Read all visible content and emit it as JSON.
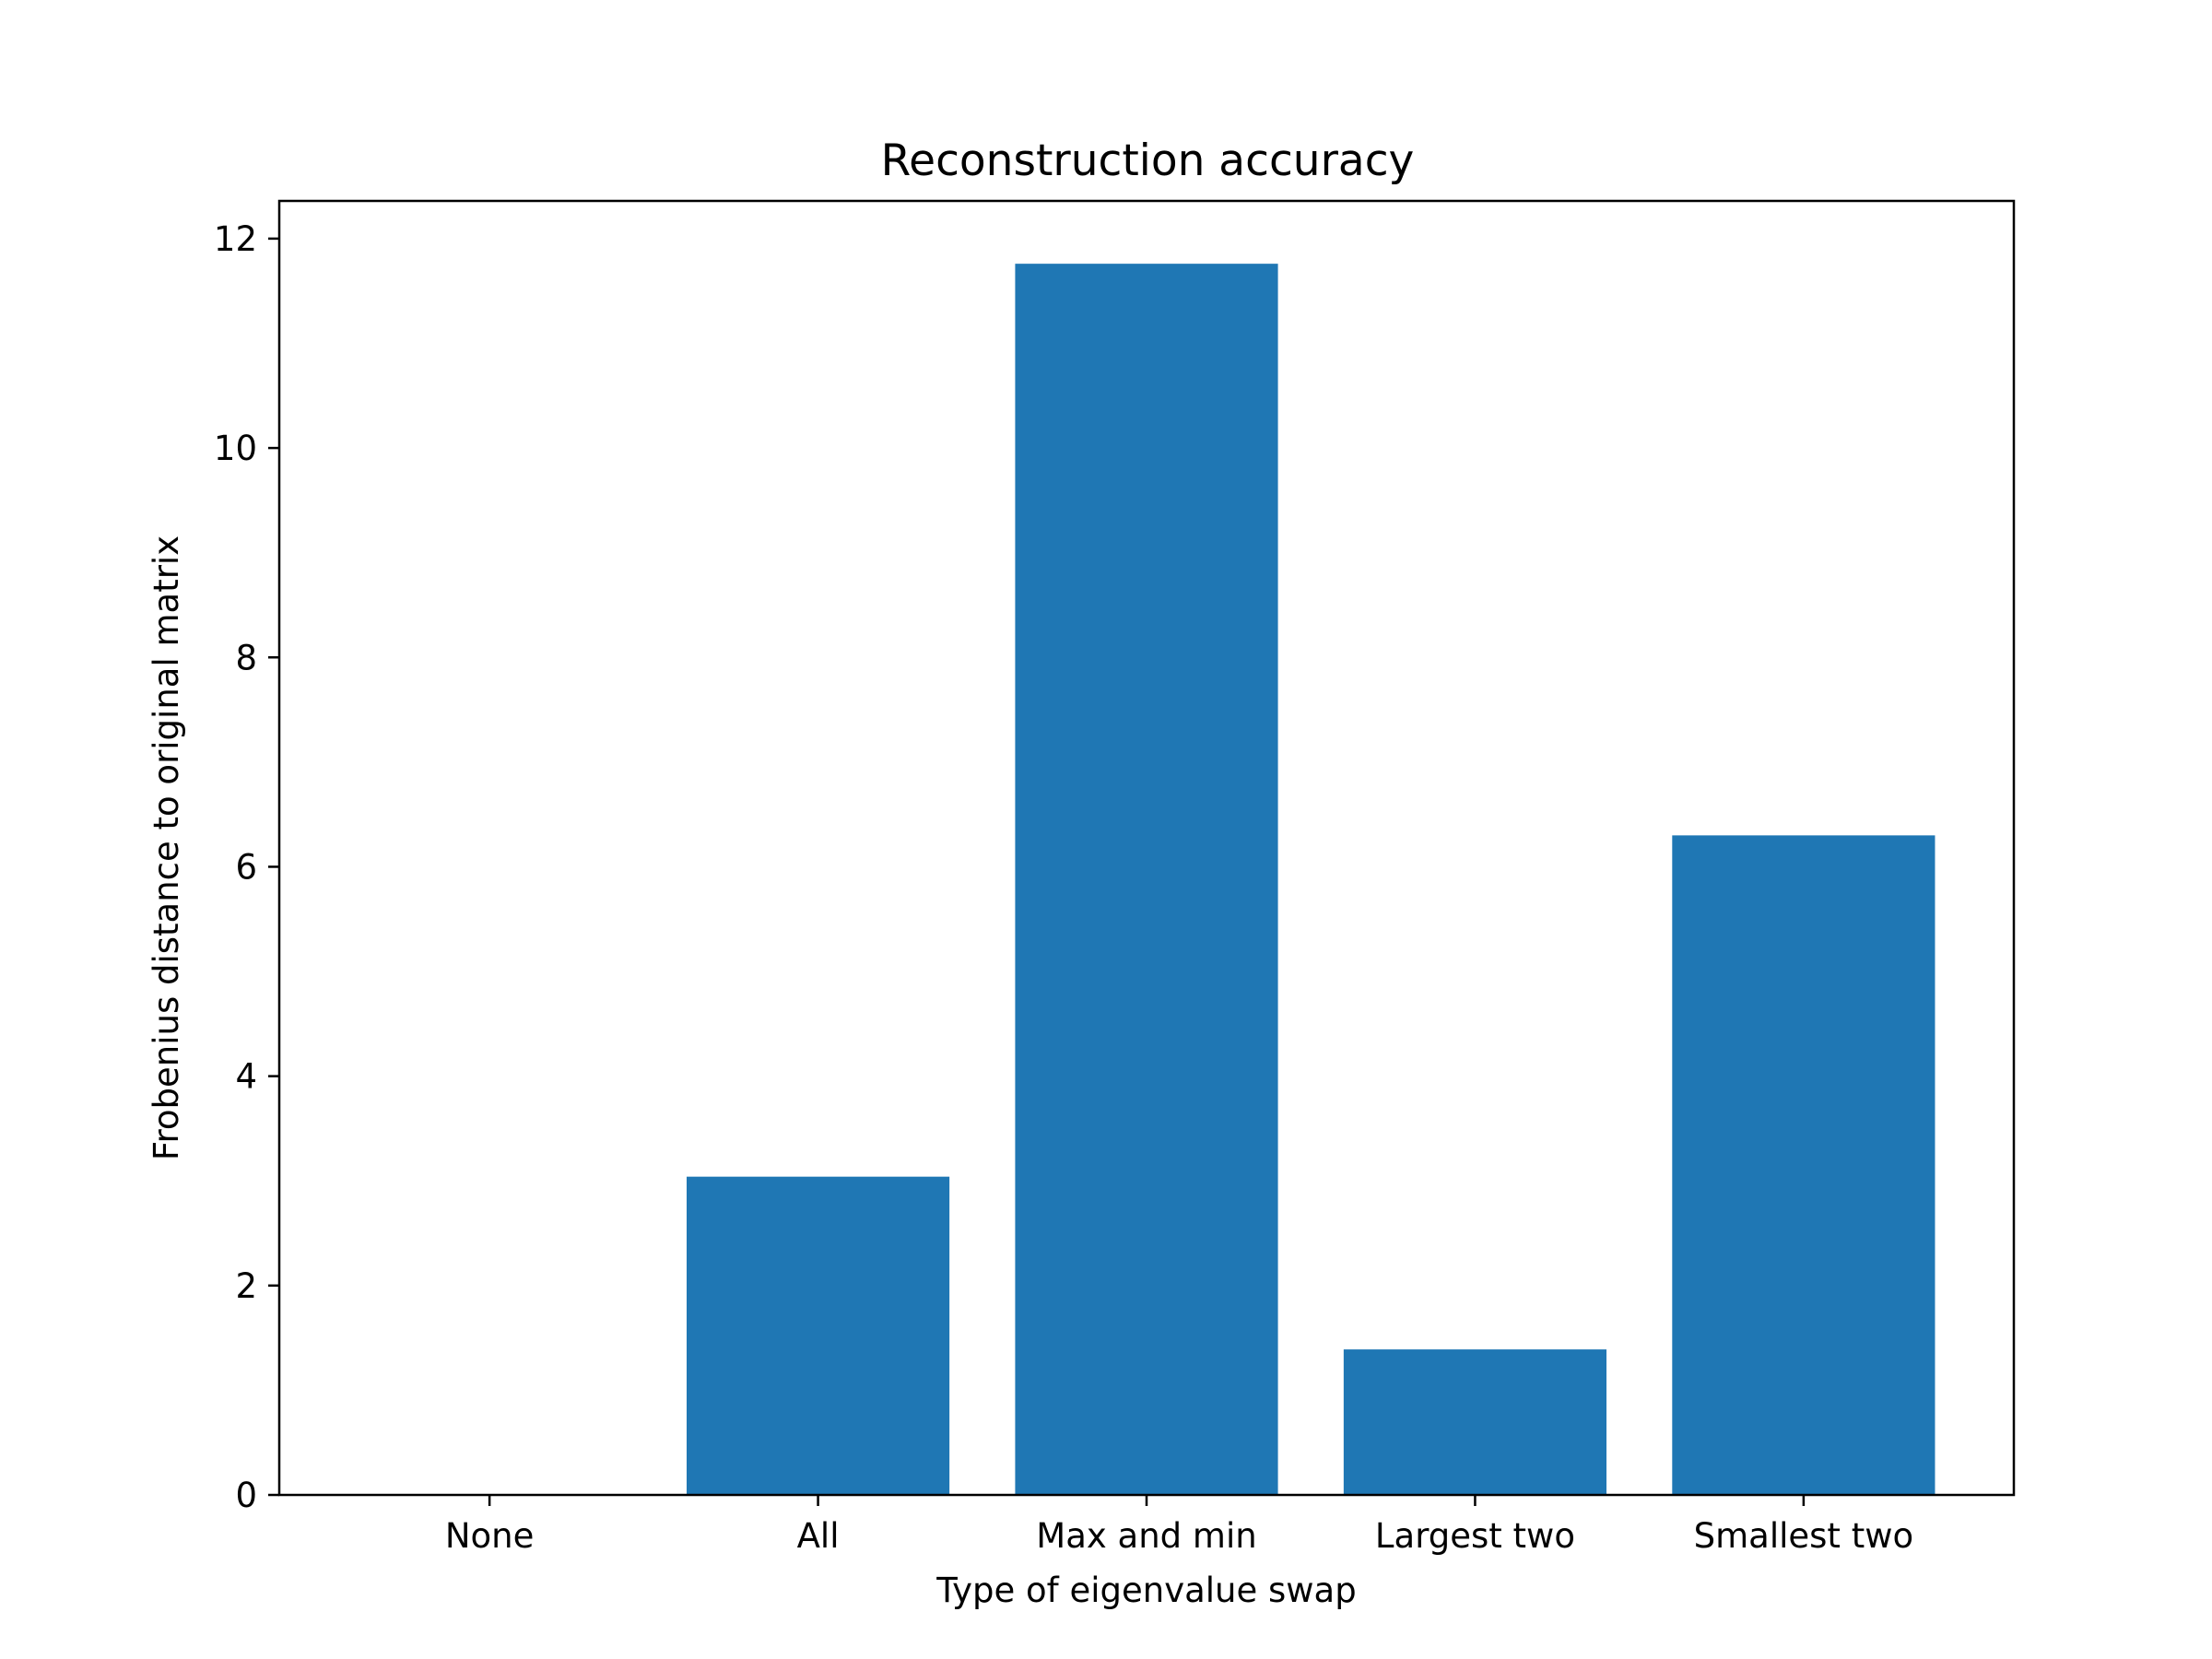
{
  "chart_data": {
    "type": "bar",
    "title": "Reconstruction accuracy",
    "xlabel": "Type of eigenvalue swap",
    "ylabel": "Frobenius distance to original matrix",
    "categories": [
      "None",
      "All",
      "Max and min",
      "Largest two",
      "Smallest two"
    ],
    "values": [
      0.0,
      3.04,
      11.76,
      1.39,
      6.3
    ],
    "ylim": [
      0,
      12.36
    ],
    "yticks": [
      0,
      2,
      4,
      6,
      8,
      10,
      12
    ],
    "bar_color": "#1f77b4",
    "grid": false,
    "legend": "none"
  }
}
